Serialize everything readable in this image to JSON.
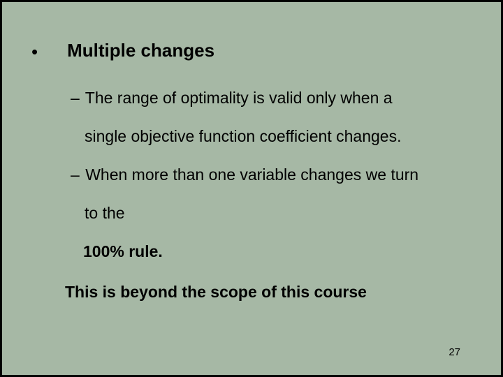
{
  "slide": {
    "background_color": "#a6b8a5",
    "border_color": "#000000",
    "text_color": "#000000",
    "title_fontsize": 26,
    "body_fontsize": 23,
    "pagenum_fontsize": 15,
    "bullet": {
      "marker": "•",
      "title": "Multiple changes"
    },
    "sub_items": [
      {
        "dash": "–",
        "line1": "The range of optimality is valid only when a",
        "line2": "single  objective function coefficient changes."
      },
      {
        "dash": "–",
        "line1": "When more than one variable changes we turn",
        "line2": "to the"
      }
    ],
    "rule_text": "100% rule.",
    "scope_text": "This is beyond the scope of this course",
    "page_number": "27"
  }
}
